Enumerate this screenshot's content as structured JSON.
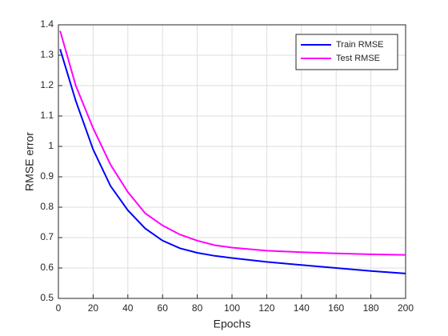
{
  "chart_data": {
    "type": "line",
    "x": [
      1,
      10,
      20,
      30,
      40,
      50,
      60,
      70,
      80,
      90,
      100,
      120,
      140,
      160,
      180,
      200
    ],
    "series": [
      {
        "name": "Train RMSE",
        "color": "#0000ff",
        "values": [
          1.32,
          1.15,
          0.99,
          0.87,
          0.79,
          0.73,
          0.69,
          0.665,
          0.65,
          0.64,
          0.633,
          0.62,
          0.61,
          0.6,
          0.59,
          0.582
        ]
      },
      {
        "name": "Test RMSE",
        "color": "#ff00ff",
        "values": [
          1.38,
          1.2,
          1.06,
          0.94,
          0.85,
          0.78,
          0.74,
          0.71,
          0.69,
          0.675,
          0.667,
          0.657,
          0.652,
          0.648,
          0.645,
          0.643
        ]
      }
    ],
    "x_label": "Epochs",
    "y_label": "RMSE error",
    "xlim": [
      0,
      200
    ],
    "xticks": [
      0,
      20,
      40,
      60,
      80,
      100,
      120,
      140,
      160,
      180,
      200
    ],
    "ylim": [
      0.5,
      1.4
    ],
    "yticks": [
      0.5,
      0.6,
      0.7,
      0.8,
      0.9,
      1,
      1.1,
      1.2,
      1.3,
      1.4
    ],
    "grid": true,
    "legend": "top-right"
  }
}
